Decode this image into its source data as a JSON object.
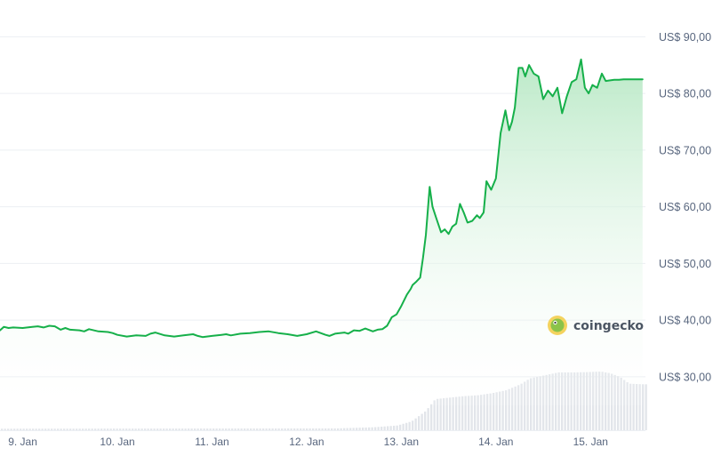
{
  "watermark": {
    "text": "coingecko",
    "logo": "coingecko-gecko-logo"
  },
  "colors": {
    "line": "#16b04a",
    "area_top": "#b7e8c4",
    "area_bottom": "#ffffff",
    "grid": "#eceff3",
    "volume": "#e2e5ea",
    "label": "#58667e"
  },
  "chart_data": {
    "type": "area",
    "title": "",
    "xlabel": "",
    "ylabel": "",
    "grid": true,
    "y_axis_position": "right",
    "ylim": [
      25,
      91
    ],
    "yticks": [
      30,
      40,
      50,
      60,
      70,
      80,
      90
    ],
    "ytick_labels": [
      "US$ 30,00",
      "US$ 40,00",
      "US$ 50,00",
      "US$ 60,00",
      "US$ 70,00",
      "US$ 80,00",
      "US$ 90,00"
    ],
    "xlim": [
      8.96,
      15.78
    ],
    "xticks": [
      9.2,
      10.2,
      11.2,
      12.2,
      13.2,
      14.2,
      15.2
    ],
    "xtick_labels": [
      "9. Jan",
      "10. Jan",
      "11. Jan",
      "12. Jan",
      "13. Jan",
      "14. Jan",
      "15. Jan"
    ],
    "price_series": {
      "x": [
        8.96,
        9.0,
        9.05,
        9.1,
        9.2,
        9.3,
        9.36,
        9.42,
        9.48,
        9.54,
        9.6,
        9.65,
        9.7,
        9.8,
        9.85,
        9.9,
        10.0,
        10.1,
        10.15,
        10.2,
        10.3,
        10.4,
        10.5,
        10.55,
        10.6,
        10.7,
        10.8,
        10.9,
        11.0,
        11.05,
        11.1,
        11.2,
        11.3,
        11.35,
        11.4,
        11.5,
        11.6,
        11.7,
        11.8,
        11.9,
        12.0,
        12.1,
        12.2,
        12.3,
        12.4,
        12.44,
        12.5,
        12.6,
        12.64,
        12.7,
        12.76,
        12.82,
        12.9,
        12.95,
        13.0,
        13.05,
        13.1,
        13.15,
        13.2,
        13.26,
        13.3,
        13.32,
        13.36,
        13.4,
        13.43,
        13.46,
        13.5,
        13.53,
        13.57,
        13.62,
        13.66,
        13.7,
        13.74,
        13.78,
        13.82,
        13.86,
        13.9,
        13.95,
        14.0,
        14.03,
        14.07,
        14.1,
        14.15,
        14.2,
        14.25,
        14.3,
        14.34,
        14.37,
        14.4,
        14.44,
        14.48,
        14.51,
        14.55,
        14.6,
        14.65,
        14.7,
        14.75,
        14.8,
        14.85,
        14.9,
        14.95,
        15.0,
        15.05,
        15.1,
        15.14,
        15.18,
        15.22,
        15.27,
        15.32,
        15.36,
        15.4,
        15.45,
        15.5,
        15.55,
        15.6,
        15.65,
        15.7,
        15.75
      ],
      "y": [
        38.2,
        38.8,
        38.6,
        38.7,
        38.6,
        38.8,
        38.9,
        38.7,
        39.0,
        38.9,
        38.3,
        38.6,
        38.3,
        38.2,
        38.0,
        38.4,
        38.0,
        37.9,
        37.7,
        37.4,
        37.1,
        37.3,
        37.2,
        37.6,
        37.8,
        37.3,
        37.1,
        37.3,
        37.5,
        37.2,
        37.0,
        37.2,
        37.4,
        37.5,
        37.3,
        37.6,
        37.7,
        37.9,
        38.0,
        37.7,
        37.5,
        37.2,
        37.5,
        38.0,
        37.4,
        37.2,
        37.6,
        37.8,
        37.6,
        38.2,
        38.1,
        38.5,
        38.0,
        38.3,
        38.4,
        39.0,
        40.5,
        41.0,
        42.5,
        44.5,
        45.5,
        46.2,
        46.8,
        47.5,
        51.0,
        55.0,
        63.5,
        60.0,
        58.0,
        55.5,
        56.0,
        55.2,
        56.5,
        57.0,
        60.5,
        59.0,
        57.2,
        57.5,
        58.5,
        58.0,
        59.0,
        64.5,
        63.0,
        65.0,
        73.0,
        77.0,
        73.5,
        75.0,
        77.5,
        84.5,
        84.5,
        83.0,
        85.0,
        83.5,
        83.0,
        79.0,
        80.5,
        79.5,
        81.0,
        76.5,
        79.5,
        82.0,
        82.5,
        86.0,
        81.0,
        80.0,
        81.5,
        81.0,
        83.5,
        82.2,
        82.3,
        82.4,
        82.4,
        82.5,
        82.5,
        82.5,
        82.5,
        82.5
      ]
    },
    "volume_series": {
      "x": [
        8.96,
        12.5,
        12.9,
        13.15,
        13.3,
        13.45,
        13.55,
        13.7,
        13.85,
        14.0,
        14.15,
        14.3,
        14.45,
        14.55,
        14.7,
        14.85,
        15.0,
        15.15,
        15.3,
        15.4,
        15.5,
        15.6,
        15.75
      ],
      "y": [
        0.5,
        0.6,
        1.0,
        1.6,
        3.0,
        6.5,
        10.5,
        11.0,
        11.5,
        11.8,
        12.5,
        13.5,
        15.5,
        17.5,
        18.5,
        19.5,
        19.5,
        19.6,
        19.8,
        19.2,
        18.0,
        15.7,
        15.5
      ],
      "ylim": [
        0,
        30
      ]
    }
  }
}
